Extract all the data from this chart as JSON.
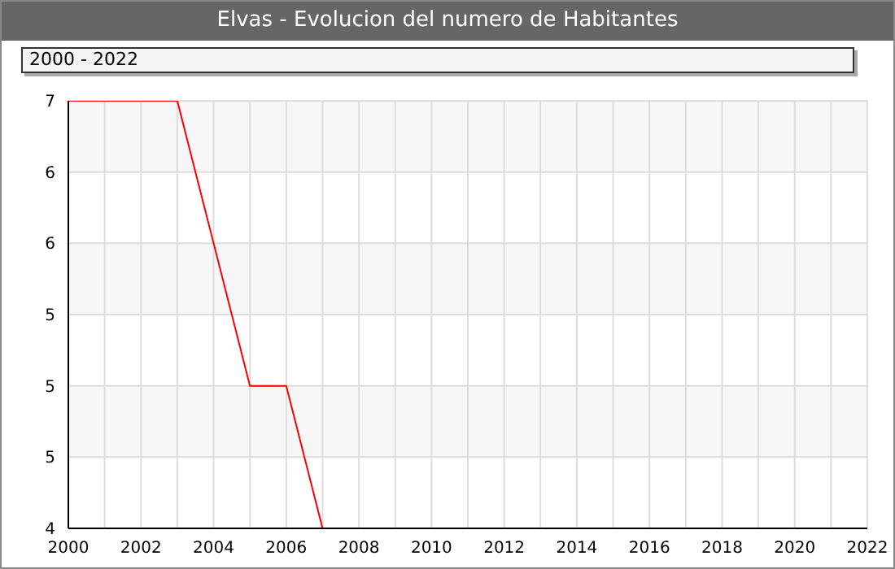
{
  "chart_data": {
    "type": "line",
    "title": "Elvas - Evolucion del numero de Habitantes",
    "subtitle": "2000 - 2022",
    "x": [
      2000,
      2001,
      2002,
      2003,
      2004,
      2005,
      2006,
      2007
    ],
    "series": [
      {
        "color": "#ff0000",
        "values": [
          7,
          7,
          7,
          7,
          6,
          5,
          5,
          4
        ]
      }
    ],
    "xlim": [
      2000,
      2022
    ],
    "xticks": [
      2000,
      {
        "value": 2001,
        "label": null
      },
      2002,
      {
        "value": 2003,
        "label": null
      },
      2004,
      {
        "value": 2005,
        "label": null
      },
      2006,
      {
        "value": 2007,
        "label": null
      },
      2008,
      {
        "value": 2009,
        "label": null
      },
      2010,
      {
        "value": 2011,
        "label": null
      },
      2012,
      {
        "value": 2013,
        "label": null
      },
      2014,
      {
        "value": 2015,
        "label": null
      },
      2016,
      {
        "value": 2017,
        "label": null
      },
      2018,
      {
        "value": 2019,
        "label": null
      },
      2020,
      {
        "value": 2021,
        "label": null
      },
      2022
    ],
    "ylim": [
      4,
      7
    ],
    "yticks": [
      4,
      {
        "value": 4.5,
        "label": "5"
      },
      5,
      {
        "value": 5.5,
        "label": "5"
      },
      6,
      {
        "value": 6.5,
        "label": "6"
      },
      7
    ],
    "grid": true,
    "marker": "none",
    "line_style": "solid"
  }
}
